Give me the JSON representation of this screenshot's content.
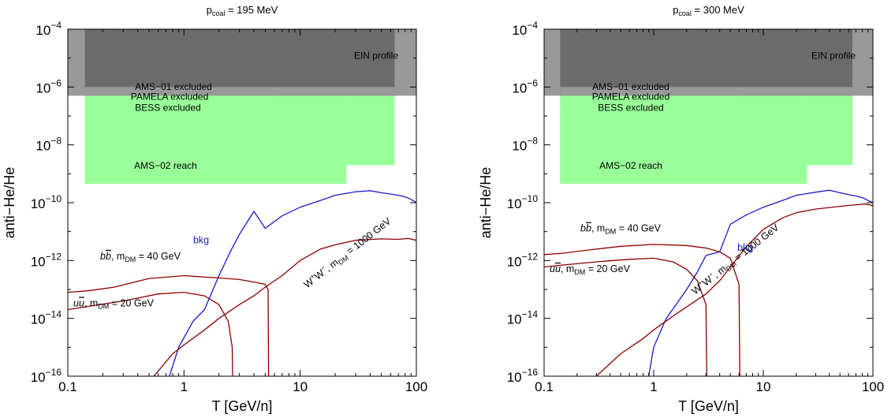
{
  "chart_data": [
    {
      "type": "line",
      "title": "p_coal = 195 MeV",
      "title_parts": {
        "main": "p",
        "sub": "coal",
        "rest": " = 195 MeV"
      },
      "xlabel": "T  [GeV/n]",
      "ylabel": "anti−He/He",
      "x_scale": "log",
      "y_scale": "log",
      "xlim": [
        0.1,
        100
      ],
      "ylim": [
        1e-16,
        0.0001
      ],
      "x_ticks": [
        "0.1",
        "1",
        "10",
        "100"
      ],
      "y_ticks": [
        {
          "base": "10",
          "exp": "−16",
          "v": -16
        },
        {
          "base": "10",
          "exp": "−14",
          "v": -14
        },
        {
          "base": "10",
          "exp": "−12",
          "v": -12
        },
        {
          "base": "10",
          "exp": "−10",
          "v": -10
        },
        {
          "base": "10",
          "exp": "−8",
          "v": -8
        },
        {
          "base": "10",
          "exp": "−6",
          "v": -6
        },
        {
          "base": "10",
          "exp": "−4",
          "v": -4
        }
      ],
      "regions": [
        {
          "name": "EIN profile",
          "label": "EIN profile",
          "color": "#999999",
          "x": [
            0.1,
            100
          ],
          "y": [
            5e-07,
            0.0001
          ]
        },
        {
          "name": "AMS-01 excluded",
          "label": "AMS−01 excluded",
          "color": "#6b6b6b",
          "x": [
            0.14,
            65
          ],
          "y": [
            5e-07,
            0.0001
          ]
        },
        {
          "name": "PAMELA excluded",
          "label": "PAMELA excluded",
          "color": "#999999",
          "x": [
            0.14,
            65
          ],
          "y": [
            5e-07,
            1e-06
          ]
        },
        {
          "name": "BESS excluded",
          "label": "BESS excluded",
          "color": "#bdbdbd",
          "x": [
            0.14,
            6
          ],
          "y": [
            2e-07,
            5e-07
          ]
        },
        {
          "name": "AMS-02 reach",
          "label": "AMS−02 reach",
          "color": "#99ff99",
          "x_steps": [
            [
              0.14,
              25,
              4.5e-10
            ],
            [
              25,
              65,
              2e-09
            ]
          ],
          "y_top": 5e-07
        }
      ],
      "series": [
        {
          "name": "bkg",
          "label": "bkg",
          "color": "#1a1acc",
          "x": [
            0.75,
            0.9,
            1.2,
            1.5,
            2.0,
            2.5,
            3.0,
            4.0,
            5.0,
            7.0,
            10,
            15,
            20,
            30,
            40,
            50,
            60,
            70,
            80,
            90,
            100
          ],
          "y": [
            1e-16,
            1e-15,
            8e-15,
            2e-14,
            3e-13,
            2e-12,
            8e-12,
            5e-11,
            1.3e-11,
            3.5e-11,
            7e-11,
            1.2e-10,
            1.8e-10,
            2.4e-10,
            2.6e-10,
            2.2e-10,
            2e-10,
            1.8e-10,
            1.6e-10,
            1.3e-10,
            1e-10
          ]
        },
        {
          "name": "bb",
          "label": "b b̄, m_DM = 40 GeV",
          "color": "#8b0000",
          "x": [
            0.1,
            0.15,
            0.25,
            0.5,
            1.0,
            2.0,
            3.0,
            4.0,
            5.0,
            5.3,
            5.35
          ],
          "y": [
            8e-14,
            9e-14,
            1.2e-13,
            2.4e-13,
            3e-13,
            2.5e-13,
            2.2e-13,
            1.8e-13,
            1.5e-13,
            1e-13,
            1e-16
          ]
        },
        {
          "name": "uu",
          "label": "u ū, m_DM = 20 GeV",
          "color": "#8b0000",
          "x": [
            0.1,
            0.15,
            0.3,
            0.6,
            1.0,
            1.5,
            2.0,
            2.4,
            2.6,
            2.62
          ],
          "y": [
            2e-14,
            2.6e-14,
            4e-14,
            7e-14,
            8e-14,
            6e-14,
            3e-14,
            8e-15,
            1e-15,
            1e-16
          ]
        },
        {
          "name": "ww",
          "label": "W⁺W⁻, m_DM = 1000 GeV",
          "color": "#8b0000",
          "x": [
            0.55,
            0.8,
            1.0,
            1.5,
            2.0,
            3.0,
            4.0,
            5.0,
            7.0,
            10,
            15,
            20,
            30,
            50,
            70,
            85,
            100
          ],
          "y": [
            1e-16,
            6e-16,
            1.2e-15,
            4e-15,
            1e-14,
            3e-14,
            6e-14,
            1.2e-13,
            3e-13,
            1e-12,
            2.5e-12,
            3.5e-12,
            5e-12,
            5.6e-12,
            5.4e-12,
            5.8e-12,
            5e-12
          ]
        }
      ]
    },
    {
      "type": "line",
      "title": "p_coal = 300 MeV",
      "title_parts": {
        "main": "p",
        "sub": "coal",
        "rest": " = 300 MeV"
      },
      "xlabel": "T  [GeV/n]",
      "ylabel": "anti−He/He",
      "x_scale": "log",
      "y_scale": "log",
      "xlim": [
        0.1,
        100
      ],
      "ylim": [
        1e-16,
        0.0001
      ],
      "x_ticks": [
        "0.1",
        "1",
        "10",
        "100"
      ],
      "y_ticks": [
        {
          "base": "10",
          "exp": "−16",
          "v": -16
        },
        {
          "base": "10",
          "exp": "−14",
          "v": -14
        },
        {
          "base": "10",
          "exp": "−12",
          "v": -12
        },
        {
          "base": "10",
          "exp": "−10",
          "v": -10
        },
        {
          "base": "10",
          "exp": "−8",
          "v": -8
        },
        {
          "base": "10",
          "exp": "−6",
          "v": -6
        },
        {
          "base": "10",
          "exp": "−4",
          "v": -4
        }
      ],
      "regions": [
        {
          "name": "EIN profile",
          "label": "EIN profile",
          "color": "#999999",
          "x": [
            0.1,
            100
          ],
          "y": [
            5e-07,
            0.0001
          ]
        },
        {
          "name": "AMS-01 excluded",
          "label": "AMS−01 excluded",
          "color": "#6b6b6b",
          "x": [
            0.14,
            65
          ],
          "y": [
            5e-07,
            0.0001
          ]
        },
        {
          "name": "PAMELA excluded",
          "label": "PAMELA excluded",
          "color": "#999999",
          "x": [
            0.14,
            65
          ],
          "y": [
            5e-07,
            1e-06
          ]
        },
        {
          "name": "BESS excluded",
          "label": "BESS excluded",
          "color": "#bdbdbd",
          "x": [
            0.14,
            6
          ],
          "y": [
            2e-07,
            5e-07
          ]
        },
        {
          "name": "AMS-02 reach",
          "label": "AMS−02 reach",
          "color": "#99ff99",
          "x_steps": [
            [
              0.14,
              25,
              4.5e-10
            ],
            [
              25,
              65,
              2e-09
            ]
          ],
          "y_top": 5e-07
        }
      ],
      "series": [
        {
          "name": "bkg",
          "label": "bkg",
          "color": "#1a1acc",
          "x": [
            0.9,
            1.0,
            1.3,
            1.6,
            2.0,
            2.5,
            3.0,
            4.0,
            5.0,
            7.0,
            10,
            15,
            20,
            30,
            40,
            50,
            60,
            70,
            80,
            90,
            100
          ],
          "y": [
            1e-16,
            1e-15,
            1e-14,
            3e-14,
            1e-13,
            4e-13,
            1.5e-12,
            2e-12,
            1.8e-11,
            3.8e-11,
            7e-11,
            1.2e-10,
            1.8e-10,
            2.3e-10,
            2.7e-10,
            2.2e-10,
            1.9e-10,
            1.7e-10,
            1.5e-10,
            1.2e-10,
            1e-10
          ]
        },
        {
          "name": "bb",
          "label": "b b̄, m_DM = 40 GeV",
          "color": "#8b0000",
          "x": [
            0.1,
            0.15,
            0.25,
            0.5,
            1.0,
            2.0,
            3.0,
            4.0,
            5.0,
            6.0,
            6.1
          ],
          "y": [
            1.6e-12,
            1.8e-12,
            2.3e-12,
            3.1e-12,
            3.6e-12,
            3.3e-12,
            2.7e-12,
            2e-12,
            1.2e-12,
            1.5e-13,
            1e-16
          ]
        },
        {
          "name": "uu",
          "label": "u ū, m_DM = 20 GeV",
          "color": "#8b0000",
          "x": [
            0.1,
            0.15,
            0.3,
            0.6,
            1.0,
            1.5,
            2.0,
            2.5,
            3.0,
            3.05
          ],
          "y": [
            6e-13,
            7e-13,
            9e-13,
            1.1e-12,
            1.2e-12,
            9e-13,
            5e-13,
            2e-13,
            3e-14,
            1e-16
          ]
        },
        {
          "name": "ww",
          "label": "W⁺W⁻, m_DM = 1000 GeV",
          "color": "#8b0000",
          "x": [
            0.3,
            0.5,
            0.8,
            1.0,
            1.5,
            2.0,
            3.0,
            4.0,
            5.0,
            7.0,
            10,
            15,
            20,
            30,
            50,
            70,
            85,
            100
          ],
          "y": [
            1e-16,
            6e-16,
            2e-15,
            4e-15,
            1.2e-14,
            2.5e-14,
            7e-14,
            2e-13,
            6e-13,
            3e-12,
            1.2e-11,
            3e-11,
            4.5e-11,
            6e-11,
            7.5e-11,
            8.5e-11,
            9e-11,
            8e-11
          ]
        }
      ]
    }
  ]
}
